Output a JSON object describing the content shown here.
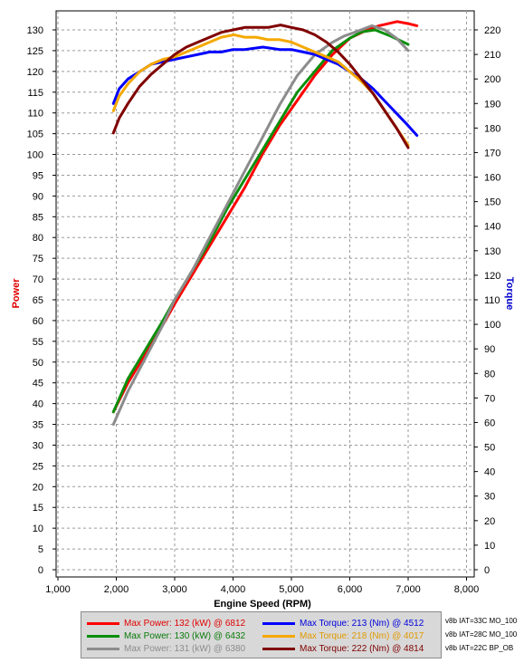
{
  "chart_data": {
    "type": "line",
    "xlabel": "Engine Speed (RPM)",
    "ylabel": "Power",
    "y2label": "Torque",
    "xlim": [
      1000,
      8000
    ],
    "ylim": [
      0,
      130
    ],
    "y2lim": [
      0,
      220
    ],
    "x_ticks": [
      "1,000",
      "2,000",
      "3,000",
      "4,000",
      "5,000",
      "6,000",
      "7,000",
      "8,000"
    ],
    "y_ticks": [
      0,
      5,
      10,
      15,
      20,
      25,
      30,
      35,
      40,
      45,
      50,
      55,
      60,
      65,
      70,
      75,
      80,
      85,
      90,
      95,
      100,
      105,
      110,
      115,
      120,
      125,
      130
    ],
    "y2_ticks": [
      0,
      10,
      20,
      30,
      40,
      50,
      60,
      70,
      80,
      90,
      100,
      110,
      120,
      130,
      140,
      150,
      160,
      170,
      180,
      190,
      200,
      210,
      220
    ],
    "grid": true,
    "series": [
      {
        "color": "#ff0000",
        "axis": "power",
        "x": [
          1950,
          2200,
          2500,
          2800,
          3000,
          3300,
          3600,
          3900,
          4200,
          4500,
          4800,
          5100,
          5400,
          5700,
          6000,
          6300,
          6500,
          6812,
          7000,
          7150
        ],
        "y": [
          38,
          45,
          52,
          59,
          64,
          71,
          78,
          85,
          92,
          100,
          107,
          113,
          119,
          124,
          128,
          130,
          131,
          132,
          131.5,
          131
        ]
      },
      {
        "color": "#0a8f0a",
        "axis": "power",
        "x": [
          1950,
          2200,
          2500,
          2800,
          3000,
          3300,
          3600,
          3900,
          4200,
          4500,
          4800,
          5100,
          5400,
          5700,
          6000,
          6200,
          6432,
          6700,
          7000
        ],
        "y": [
          38,
          46,
          53,
          60,
          65,
          72,
          79,
          87,
          94,
          101,
          108,
          115,
          120,
          125,
          128,
          129.5,
          130,
          128.5,
          126.5
        ]
      },
      {
        "color": "#8c8c8c",
        "axis": "power",
        "x": [
          1950,
          2200,
          2500,
          2800,
          3000,
          3300,
          3600,
          3900,
          4200,
          4500,
          4800,
          5100,
          5400,
          5700,
          5900,
          6100,
          6380,
          6600,
          6800,
          7000
        ],
        "y": [
          35,
          43,
          51,
          59,
          65,
          72,
          80,
          88,
          96,
          104,
          112,
          119,
          124,
          127,
          128.5,
          129.5,
          131,
          130,
          128,
          125
        ]
      },
      {
        "color": "#0000ff",
        "axis": "torque",
        "x": [
          1950,
          2050,
          2200,
          2400,
          2600,
          2800,
          3000,
          3200,
          3400,
          3600,
          3800,
          4000,
          4200,
          4512,
          4800,
          5000,
          5200,
          5400,
          5600,
          5800,
          6000,
          6200,
          6400,
          6600,
          6800,
          7000,
          7150
        ],
        "y": [
          190,
          196,
          200,
          203,
          206,
          207,
          208,
          209,
          210,
          211,
          211,
          212,
          212,
          213,
          212,
          212,
          211,
          210,
          208,
          206,
          203,
          200,
          196,
          191,
          186,
          181,
          177
        ]
      },
      {
        "color": "#f5a800",
        "axis": "torque",
        "x": [
          1950,
          2050,
          2200,
          2400,
          2600,
          2800,
          3000,
          3200,
          3400,
          3600,
          3800,
          4017,
          4200,
          4400,
          4600,
          4800,
          5000,
          5200,
          5400,
          5600,
          5800,
          6000,
          6200,
          6400,
          6600,
          6800,
          7000
        ],
        "y": [
          187,
          193,
          198,
          203,
          206,
          208,
          209,
          211,
          213,
          215,
          217,
          218,
          217,
          217,
          216,
          216,
          215,
          213,
          211,
          209,
          207,
          203,
          199,
          194,
          187,
          180,
          173
        ]
      },
      {
        "color": "#800000",
        "axis": "torque",
        "x": [
          1950,
          2050,
          2200,
          2400,
          2600,
          2800,
          3000,
          3200,
          3400,
          3600,
          3800,
          4000,
          4200,
          4400,
          4600,
          4814,
          5000,
          5200,
          5400,
          5600,
          5800,
          6000,
          6200,
          6400,
          6600,
          6800,
          7000
        ],
        "y": [
          178,
          184,
          190,
          197,
          202,
          206,
          210,
          213,
          215,
          217,
          219,
          220,
          221,
          221,
          221,
          222,
          221,
          220,
          218,
          215,
          211,
          206,
          200,
          194,
          187,
          180,
          172
        ]
      }
    ]
  },
  "legend": {
    "red": "Max Power: 132 (kW) @ 6812",
    "green": "Max Power: 130 (kW) @ 6432",
    "gray": "Max Power: 131 (kW) @ 6380",
    "blue": "Max Torque: 213 (Nm) @ 4512",
    "orange": "Max Torque: 218 (Nm) @ 4017",
    "darkred": "Max Torque: 222 (Nm) @ 4814"
  },
  "runs": [
    "v8b IAT=33C MO_100",
    "v8b IAT=28C MO_100",
    "v8b IAT=22C BP_OB"
  ],
  "colors": {
    "red": "#ff0000",
    "green": "#0a8f0a",
    "gray": "#8c8c8c",
    "blue": "#0000ff",
    "orange": "#f5a800",
    "darkred": "#800000"
  }
}
